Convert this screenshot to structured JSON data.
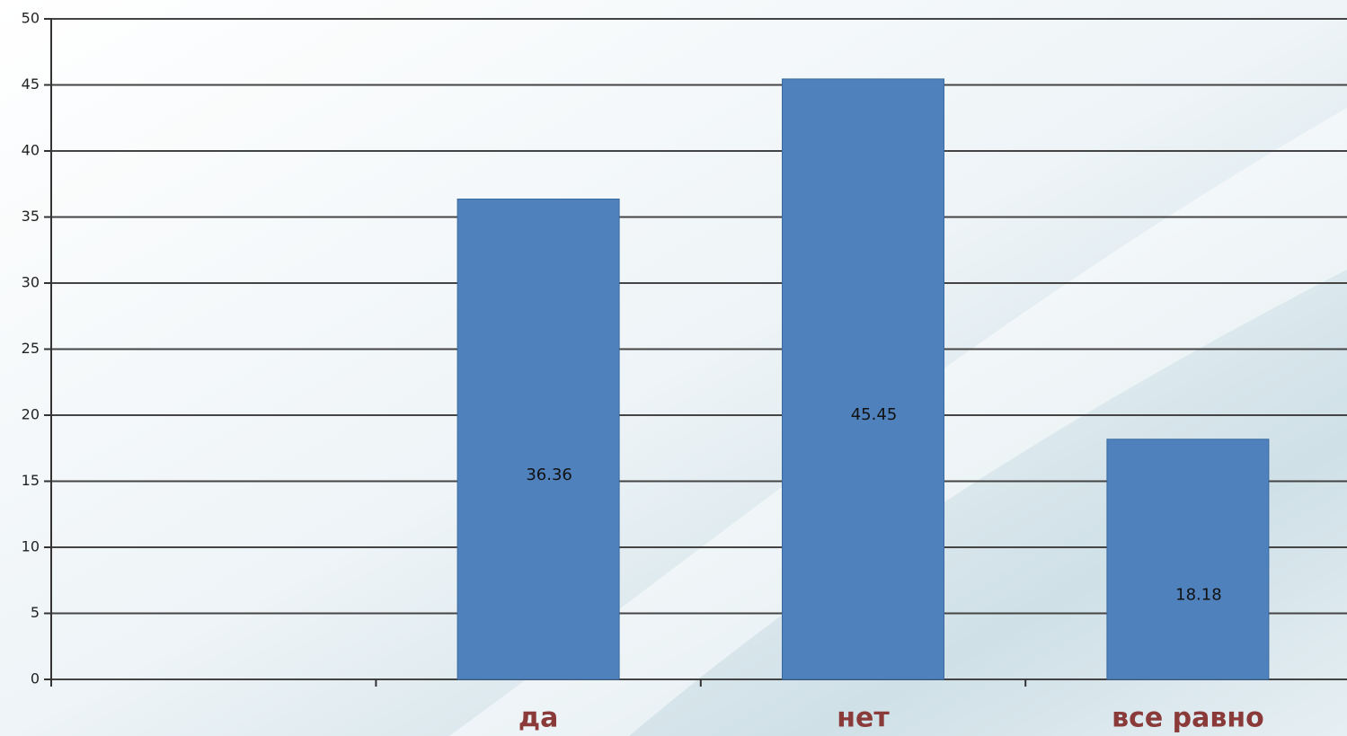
{
  "chart_data": {
    "type": "bar",
    "categories": [
      null,
      "да",
      "нет",
      "все равно"
    ],
    "values": [
      null,
      36.36,
      45.45,
      18.18
    ],
    "color": "#4f81bd",
    "ylim": [
      0,
      50
    ],
    "yticks": [
      0,
      5,
      10,
      15,
      20,
      25,
      30,
      35,
      40,
      45,
      50
    ],
    "grid": true
  }
}
